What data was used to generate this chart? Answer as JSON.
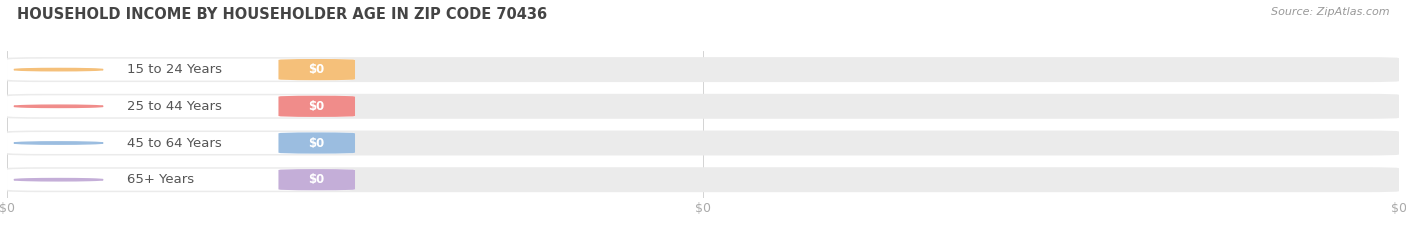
{
  "title": "HOUSEHOLD INCOME BY HOUSEHOLDER AGE IN ZIP CODE 70436",
  "source": "Source: ZipAtlas.com",
  "categories": [
    "15 to 24 Years",
    "25 to 44 Years",
    "45 to 64 Years",
    "65+ Years"
  ],
  "values": [
    0,
    0,
    0,
    0
  ],
  "bar_colors": [
    "#f5c07a",
    "#f08c8a",
    "#9bbde0",
    "#c4aed8"
  ],
  "bar_bg_color": "#ebebeb",
  "label_white_bg": "#ffffff",
  "label_text_color": "#555555",
  "value_text_color": "#ffffff",
  "title_color": "#444444",
  "source_color": "#999999",
  "background_color": "#ffffff",
  "tick_label_color": "#aaaaaa",
  "x_tick_labels": [
    "$0",
    "$0",
    "$0"
  ]
}
